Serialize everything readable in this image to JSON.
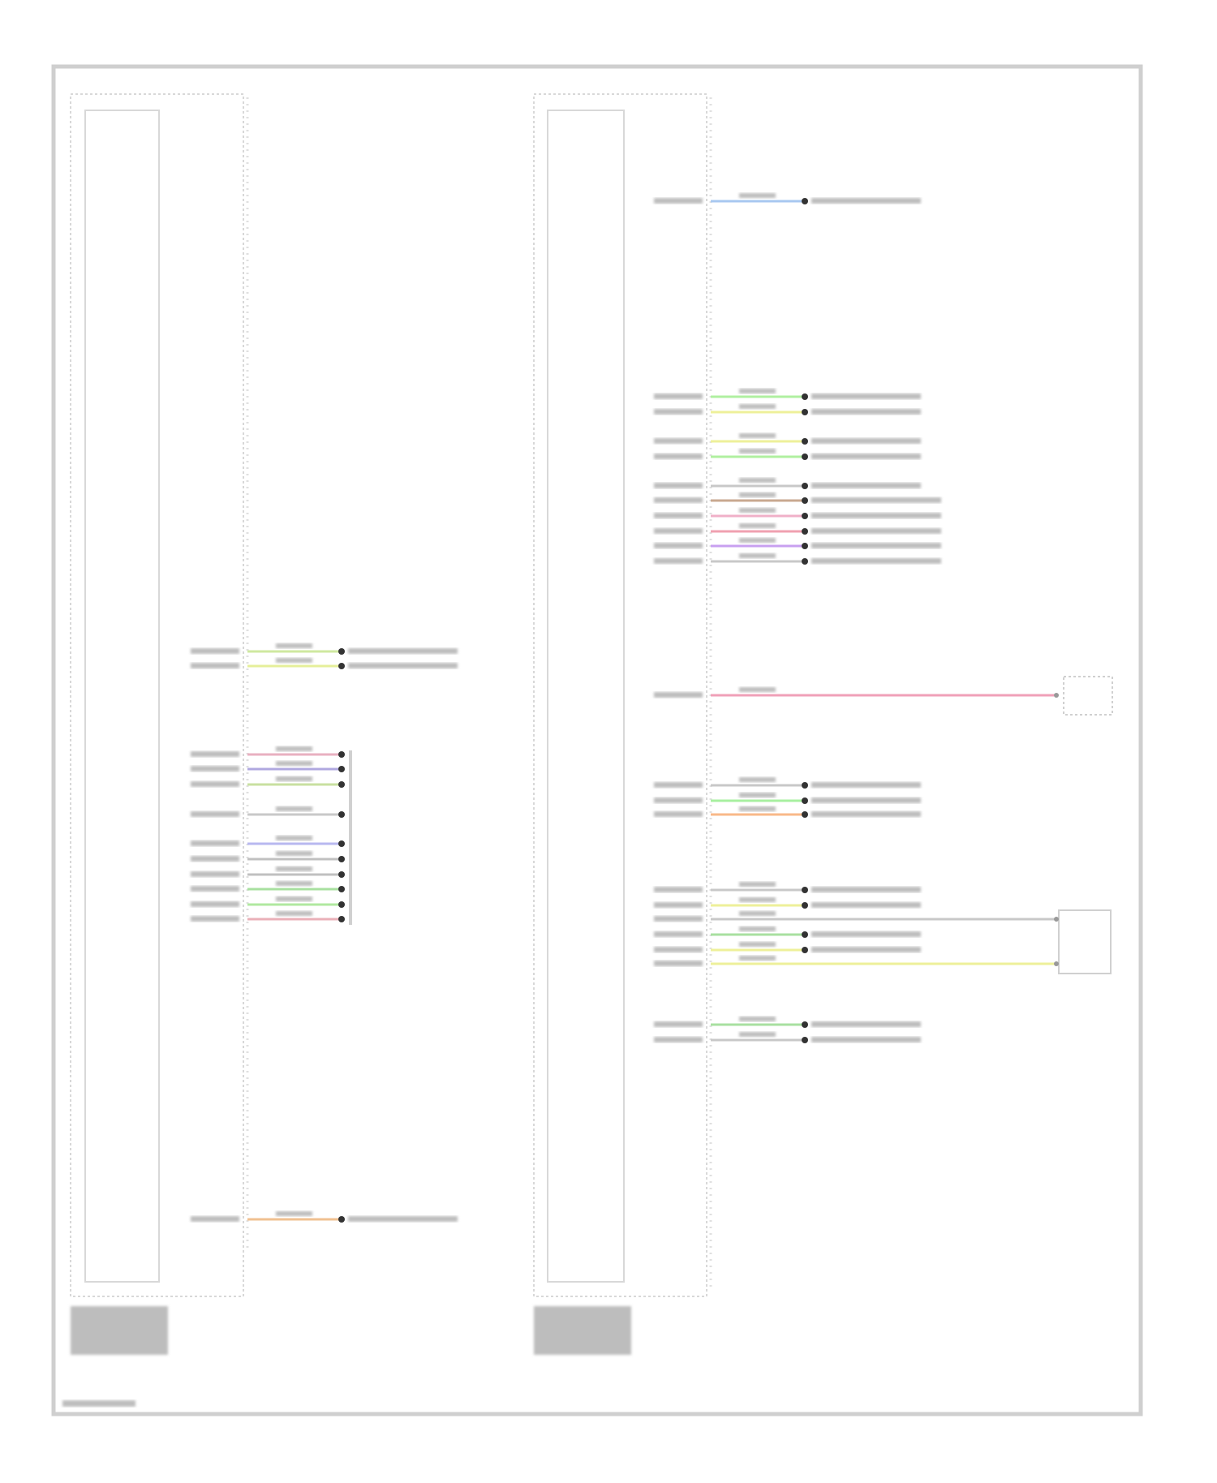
{
  "diagram": {
    "frame_color": "#c8c8c8",
    "left_module": {
      "wires": [
        {
          "color": "#cfe8a0"
        },
        {
          "color": "#e6ef9a"
        },
        {
          "color": "#e8b0c0"
        },
        {
          "color": "#b0a8e0"
        },
        {
          "color": "#c8e0a0"
        },
        {
          "color": "#c8c8c8"
        },
        {
          "color": "#b8b8f0"
        },
        {
          "color": "#c0c0c0"
        },
        {
          "color": "#c0c0c0"
        },
        {
          "color": "#a8e0a0"
        },
        {
          "color": "#b0e8a0"
        },
        {
          "color": "#eab0b8"
        },
        {
          "color": "#f0c090"
        }
      ]
    },
    "right_module": {
      "wires": [
        {
          "color": "#a8c8f0"
        },
        {
          "color": "#b0f0a0"
        },
        {
          "color": "#eef09a"
        },
        {
          "color": "#eef09a"
        },
        {
          "color": "#b0f0a0"
        },
        {
          "color": "#c8c8c8"
        },
        {
          "color": "#c8a890"
        },
        {
          "color": "#f0b0c8"
        },
        {
          "color": "#f0a0b0"
        },
        {
          "color": "#c8a0f0"
        },
        {
          "color": "#c8c8c8"
        },
        {
          "color": "#f0a0b8"
        },
        {
          "color": "#c8c8c8"
        },
        {
          "color": "#a8f0a0"
        },
        {
          "color": "#f8b888"
        },
        {
          "color": "#c8c8c8"
        },
        {
          "color": "#eef09a"
        },
        {
          "color": "#c8c8c8"
        },
        {
          "color": "#a8e0a0"
        },
        {
          "color": "#eef09a"
        },
        {
          "color": "#eef09a"
        },
        {
          "color": "#a8e0a0"
        },
        {
          "color": "#c8c8c8"
        }
      ]
    }
  }
}
